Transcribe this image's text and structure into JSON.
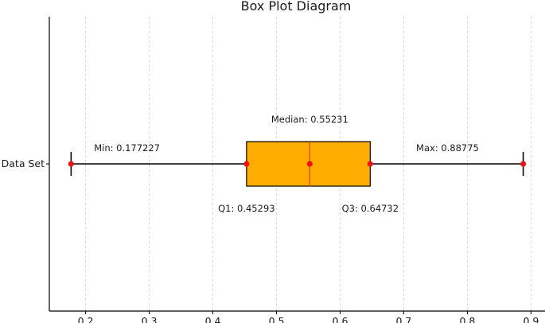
{
  "chart_data": {
    "type": "box",
    "title": "Box Plot Diagram",
    "orientation": "horizontal",
    "xlabel": "",
    "ylabel": "",
    "xlim": [
      0.143,
      0.922
    ],
    "x_ticks": [
      0.2,
      0.3,
      0.4,
      0.5,
      0.6,
      0.7,
      0.8,
      0.9
    ],
    "categories": [
      "Data Set"
    ],
    "grid": "vertical dashed",
    "boxes": [
      {
        "category": "Data Set",
        "min": 0.177227,
        "q1": 0.45293,
        "median": 0.55231,
        "q3": 0.64732,
        "max": 0.88775
      }
    ],
    "annotations": {
      "min": "Min: 0.177227",
      "q1": "Q1: 0.45293",
      "median": "Median: 0.55231",
      "q3": "Q3: 0.64732",
      "max": "Max: 0.88775"
    },
    "colors": {
      "box_fill": "#ffad00",
      "median_line": "#f04a00",
      "points": "#ee1111",
      "whisker": "#000000"
    }
  }
}
